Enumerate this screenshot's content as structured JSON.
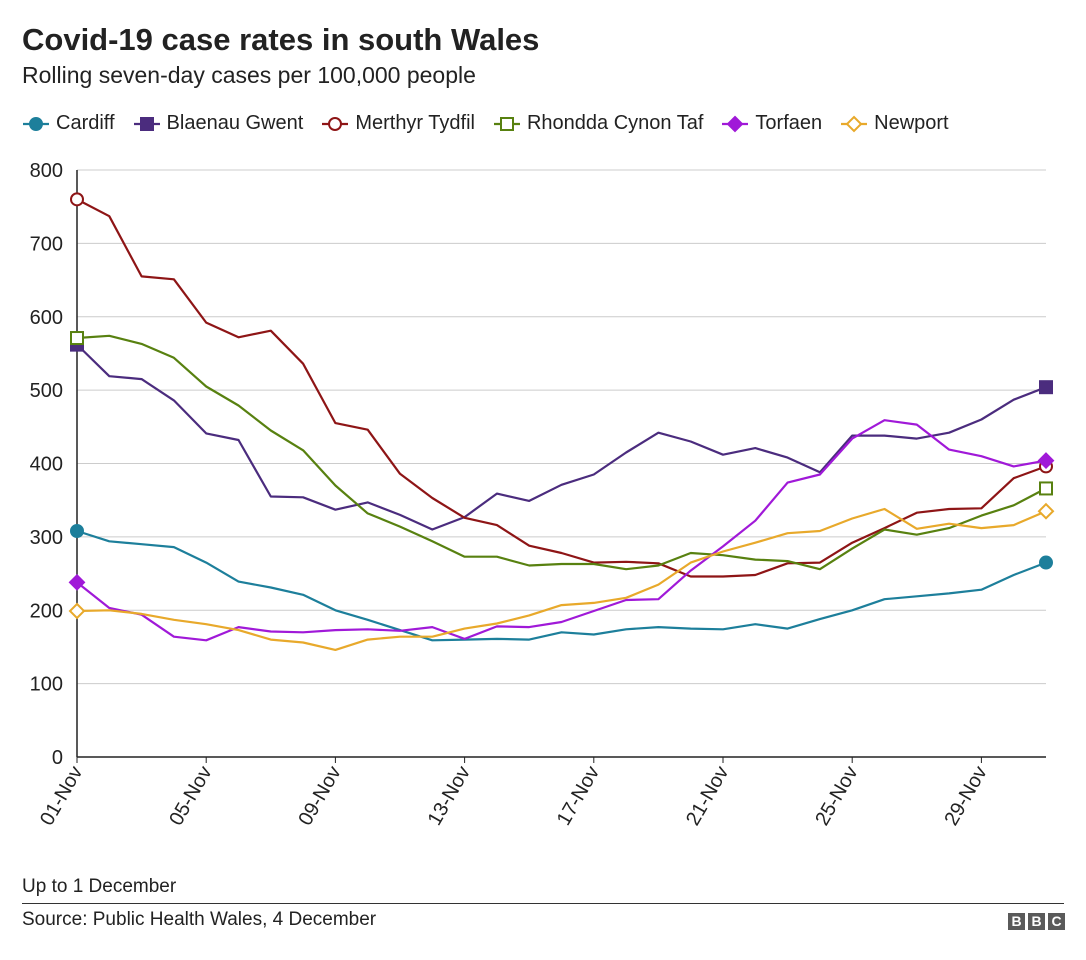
{
  "header": {
    "title": "Covid-19 case rates in south Wales",
    "subtitle": "Rolling seven-day cases per 100,000 people"
  },
  "footer": {
    "note": "Up to 1 December",
    "source": "Source: Public Health Wales, 4 December",
    "logo_letters": [
      "B",
      "B",
      "C"
    ]
  },
  "chart_data": {
    "type": "line",
    "title": "Covid-19 case rates in south Wales",
    "subtitle": "Rolling seven-day cases per 100,000 people",
    "x": [
      "01-Nov",
      "02-Nov",
      "03-Nov",
      "04-Nov",
      "05-Nov",
      "06-Nov",
      "07-Nov",
      "08-Nov",
      "09-Nov",
      "10-Nov",
      "11-Nov",
      "12-Nov",
      "13-Nov",
      "14-Nov",
      "15-Nov",
      "16-Nov",
      "17-Nov",
      "18-Nov",
      "19-Nov",
      "20-Nov",
      "21-Nov",
      "22-Nov",
      "23-Nov",
      "24-Nov",
      "25-Nov",
      "26-Nov",
      "27-Nov",
      "28-Nov",
      "29-Nov",
      "30-Nov",
      "01-Dec"
    ],
    "x_tick_labels": [
      "01-Nov",
      "05-Nov",
      "09-Nov",
      "13-Nov",
      "17-Nov",
      "21-Nov",
      "25-Nov",
      "29-Nov"
    ],
    "x_tick_index": [
      0,
      4,
      8,
      12,
      16,
      20,
      24,
      28
    ],
    "ylim": [
      0,
      800
    ],
    "y_ticks": [
      0,
      100,
      200,
      300,
      400,
      500,
      600,
      700,
      800
    ],
    "grid": "horizontal",
    "legend_position": "top",
    "series": [
      {
        "name": "Cardiff",
        "color": "#1d7f9b",
        "marker": "filled-circle",
        "values": [
          308,
          294,
          290,
          286,
          265,
          239,
          231,
          221,
          200,
          187,
          173,
          159,
          160,
          161,
          160,
          170,
          167,
          174,
          177,
          175,
          174,
          181,
          175,
          188,
          200,
          215,
          219,
          223,
          228,
          248,
          265
        ]
      },
      {
        "name": "Blaenau Gwent",
        "color": "#4b2c7e",
        "marker": "filled-square",
        "values": [
          562,
          519,
          515,
          486,
          441,
          432,
          355,
          354,
          337,
          347,
          330,
          310,
          327,
          359,
          349,
          371,
          385,
          415,
          442,
          430,
          412,
          421,
          408,
          388,
          438,
          438,
          434,
          442,
          460,
          487,
          504
        ]
      },
      {
        "name": "Merthyr Tydfil",
        "color": "#8e1516",
        "marker": "open-circle",
        "values": [
          760,
          737,
          655,
          651,
          592,
          572,
          581,
          536,
          455,
          446,
          386,
          353,
          326,
          316,
          288,
          278,
          265,
          266,
          264,
          246,
          246,
          248,
          264,
          265,
          292,
          312,
          333,
          338,
          339,
          380,
          396
        ]
      },
      {
        "name": "Rhondda Cynon Taf",
        "color": "#588110",
        "marker": "open-square",
        "values": [
          571,
          574,
          563,
          544,
          505,
          479,
          445,
          418,
          370,
          332,
          314,
          294,
          273,
          273,
          261,
          263,
          263,
          256,
          261,
          278,
          275,
          269,
          267,
          256,
          284,
          310,
          303,
          312,
          329,
          343,
          366
        ]
      },
      {
        "name": "Torfaen",
        "color": "#a019d8",
        "marker": "filled-diamond",
        "values": [
          238,
          203,
          194,
          164,
          159,
          177,
          171,
          170,
          173,
          174,
          172,
          177,
          161,
          178,
          177,
          184,
          199,
          214,
          215,
          254,
          287,
          322,
          374,
          385,
          434,
          459,
          453,
          419,
          410,
          396,
          404
        ]
      },
      {
        "name": "Newport",
        "color": "#e8a92b",
        "marker": "open-diamond",
        "values": [
          199,
          200,
          195,
          187,
          181,
          173,
          160,
          156,
          146,
          160,
          164,
          164,
          175,
          182,
          193,
          207,
          210,
          217,
          235,
          265,
          280,
          292,
          305,
          308,
          325,
          338,
          311,
          318,
          312,
          316,
          335
        ]
      }
    ]
  }
}
